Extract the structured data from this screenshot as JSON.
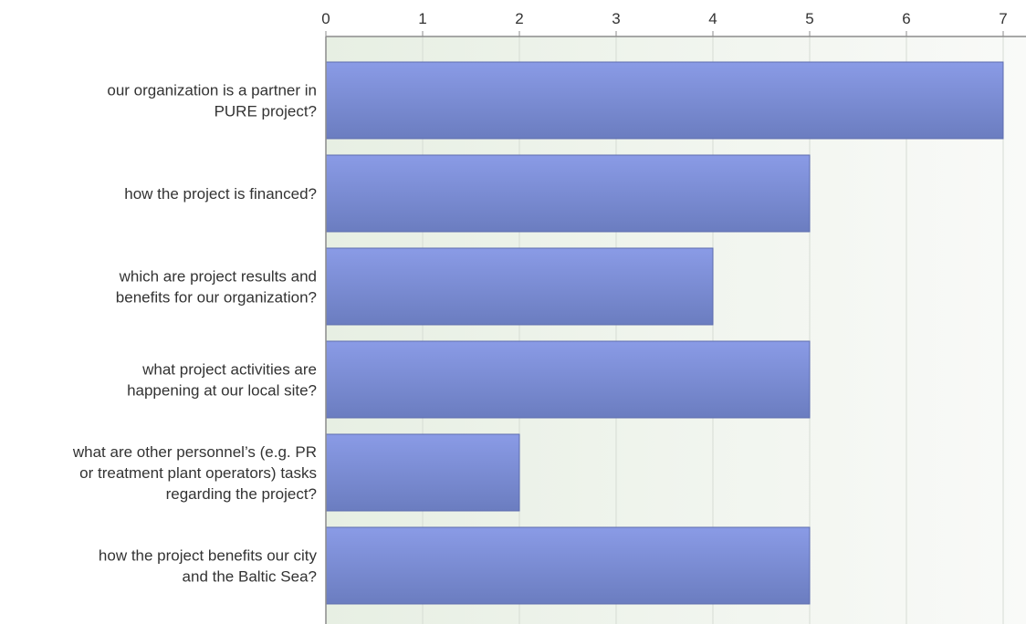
{
  "chart_data": {
    "type": "bar",
    "orientation": "horizontal",
    "x_axis_position": "top",
    "categories": [
      [
        "our organization is a partner in",
        "PURE project?"
      ],
      [
        "how the project is financed?"
      ],
      [
        "which are project results and",
        "benefits for our organization?"
      ],
      [
        "what project activities are",
        "happening at our local site?"
      ],
      [
        "what are other personnel’s (e.g. PR",
        "or treatment plant operators) tasks",
        "regarding the project?"
      ],
      [
        "how the project benefits our city",
        "and the Baltic Sea?"
      ]
    ],
    "values": [
      7,
      5,
      4,
      5,
      2,
      5
    ],
    "xlim": [
      0,
      7
    ],
    "ticks": [
      "0",
      "1",
      "2",
      "3",
      "4",
      "5",
      "6",
      "7"
    ],
    "grid": true,
    "colors": {
      "bar_top": "#8a9be6",
      "bar_bottom": "#6b7dc0",
      "bar_stroke": "#5d6cae",
      "plot_bg_left": "#e7efe3",
      "plot_bg_right": "#f9faf8",
      "grid": "#d6dcd4",
      "axis": "#8c8c8c",
      "text": "#333333"
    }
  }
}
